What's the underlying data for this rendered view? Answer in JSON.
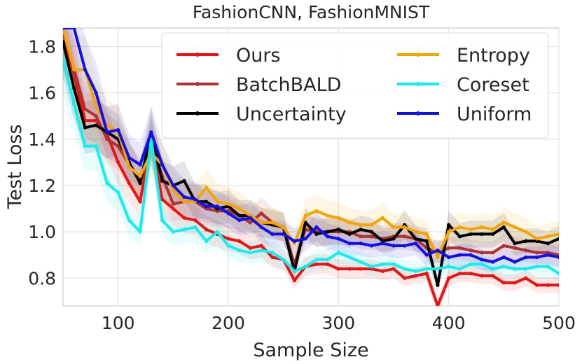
{
  "chart_data": {
    "type": "line",
    "title": "FashionCNN, FashionMNIST",
    "xlabel": "Sample Size",
    "ylabel": "Test Loss",
    "xlim": [
      50,
      500
    ],
    "ylim": [
      0.68,
      1.88
    ],
    "xticks": [
      100,
      200,
      300,
      400,
      500
    ],
    "yticks": [
      0.8,
      1.0,
      1.2,
      1.4,
      1.6,
      1.8
    ],
    "xtick_labels": [
      "100",
      "200",
      "300",
      "400",
      "500"
    ],
    "ytick_labels": [
      "0.8",
      "1.0",
      "1.2",
      "1.4",
      "1.6",
      "1.8"
    ],
    "grid": true,
    "legend_position": "top-right",
    "x": [
      50,
      60,
      70,
      80,
      90,
      100,
      110,
      120,
      130,
      140,
      150,
      160,
      170,
      180,
      190,
      200,
      210,
      220,
      230,
      240,
      250,
      260,
      270,
      280,
      290,
      300,
      310,
      320,
      330,
      340,
      350,
      360,
      370,
      380,
      390,
      400,
      410,
      420,
      430,
      440,
      450,
      460,
      470,
      480,
      490,
      500
    ],
    "series": [
      {
        "name": "Ours",
        "color": "#ee1111",
        "values": [
          1.86,
          1.68,
          1.48,
          1.48,
          1.42,
          1.3,
          1.21,
          1.13,
          1.4,
          1.14,
          1.1,
          1.06,
          1.05,
          1.01,
          0.99,
          0.97,
          0.96,
          0.93,
          0.94,
          0.89,
          0.88,
          0.79,
          0.85,
          0.86,
          0.86,
          0.84,
          0.84,
          0.84,
          0.84,
          0.83,
          0.84,
          0.8,
          0.81,
          0.82,
          0.68,
          0.8,
          0.82,
          0.82,
          0.81,
          0.81,
          0.78,
          0.78,
          0.8,
          0.77,
          0.77,
          0.77
        ]
      },
      {
        "name": "BatchBALD",
        "color": "#b03030",
        "values": [
          1.86,
          1.7,
          1.53,
          1.5,
          1.4,
          1.37,
          1.29,
          1.22,
          1.39,
          1.24,
          1.12,
          1.13,
          1.13,
          1.1,
          1.09,
          1.09,
          1.07,
          1.04,
          1.08,
          1.04,
          1.02,
          0.86,
          1.01,
          1.0,
          1.0,
          1.0,
          1.0,
          0.98,
          0.98,
          0.97,
          0.98,
          0.98,
          0.97,
          0.93,
          0.91,
          0.93,
          0.93,
          0.92,
          0.91,
          0.91,
          0.94,
          0.93,
          0.92,
          0.91,
          0.91,
          0.9
        ]
      },
      {
        "name": "Uncertainty",
        "color": "#000000",
        "values": [
          1.82,
          1.62,
          1.45,
          1.46,
          1.43,
          1.4,
          1.3,
          1.21,
          1.43,
          1.22,
          1.2,
          1.22,
          1.13,
          1.13,
          1.1,
          1.11,
          1.07,
          1.07,
          1.04,
          1.03,
          1.02,
          0.83,
          1.04,
          0.99,
          1.0,
          1.01,
          0.99,
          1.01,
          1.0,
          0.96,
          0.97,
          1.03,
          0.97,
          0.96,
          0.77,
          1.03,
          0.98,
          0.99,
          0.99,
          0.99,
          1.02,
          0.95,
          0.96,
          0.96,
          0.95,
          0.97
        ]
      },
      {
        "name": "Entropy",
        "color": "#f5a500",
        "values": [
          1.88,
          1.7,
          1.7,
          1.54,
          1.46,
          1.43,
          1.28,
          1.24,
          1.34,
          1.29,
          1.18,
          1.13,
          1.13,
          1.19,
          1.13,
          1.12,
          1.1,
          1.07,
          1.04,
          1.04,
          1.02,
          0.95,
          1.07,
          1.09,
          1.07,
          1.06,
          1.04,
          1.03,
          1.03,
          1.06,
          1.02,
          1.02,
          1.0,
          0.99,
          0.89,
          1.0,
          1.02,
          1.01,
          1.02,
          1.01,
          1.04,
          1.02,
          1.0,
          0.97,
          0.98,
          0.99
        ]
      },
      {
        "name": "Coreset",
        "color": "#11f0f0",
        "values": [
          1.75,
          1.55,
          1.37,
          1.37,
          1.21,
          1.17,
          1.05,
          1.0,
          1.4,
          1.05,
          1.0,
          1.01,
          1.02,
          0.96,
          1.0,
          0.94,
          0.92,
          0.91,
          0.92,
          0.91,
          0.88,
          0.83,
          0.85,
          0.88,
          0.88,
          0.91,
          0.89,
          0.87,
          0.85,
          0.86,
          0.86,
          0.84,
          0.83,
          0.84,
          0.84,
          0.85,
          0.84,
          0.86,
          0.86,
          0.84,
          0.85,
          0.84,
          0.84,
          0.85,
          0.85,
          0.82
        ]
      },
      {
        "name": "Uniform",
        "color": "#1010ee",
        "values": [
          1.88,
          1.88,
          1.7,
          1.6,
          1.43,
          1.44,
          1.32,
          1.29,
          1.43,
          1.29,
          1.2,
          1.15,
          1.14,
          1.11,
          1.11,
          1.08,
          1.05,
          1.06,
          1.02,
          0.99,
          0.99,
          0.96,
          0.97,
          1.02,
          0.98,
          0.97,
          0.95,
          0.95,
          0.94,
          0.95,
          0.94,
          0.94,
          0.95,
          0.9,
          0.92,
          0.89,
          0.9,
          0.9,
          0.88,
          0.87,
          0.89,
          0.87,
          0.89,
          0.89,
          0.9,
          0.89
        ]
      }
    ]
  }
}
